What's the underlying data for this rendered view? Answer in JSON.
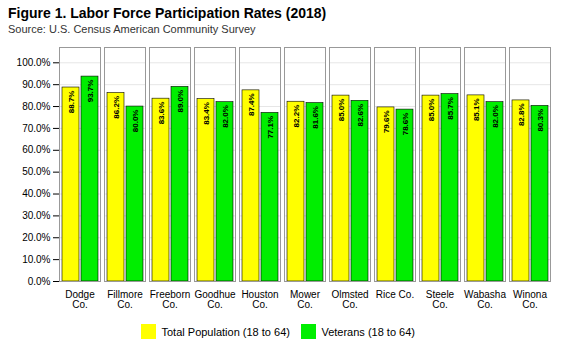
{
  "chart_data": {
    "type": "bar",
    "title": "Figure 1. Labor Force Participation Rates (2018)",
    "subtitle": "Source: U.S. Census American Community Survey",
    "categories": [
      "Dodge\nCo.",
      "Fillmore\nCo.",
      "Freeborn\nCo.",
      "Goodhue\nCo.",
      "Houston\nCo.",
      "Mower\nCo.",
      "Olmsted\nCo.",
      "Rice Co.",
      "Steele\nCo.",
      "Wabasha\nCo.",
      "Winona\nCo."
    ],
    "series": [
      {
        "name": "Total Population (18 to 64)",
        "color": "#FFFF00",
        "values": [
          88.7,
          86.2,
          83.6,
          83.4,
          87.4,
          82.2,
          85.0,
          79.6,
          85.0,
          85.1,
          82.8
        ],
        "value_labels": [
          "88.7%",
          "86.2%",
          "83.6%",
          "83.4%",
          "87.4%",
          "82.2%",
          "85.0%",
          "79.6%",
          "85.0%",
          "85.1%",
          "82.8%"
        ]
      },
      {
        "name": "Veterans (18 to 64)",
        "color": "#00EE00",
        "values": [
          93.7,
          80.0,
          89.0,
          82.0,
          77.1,
          81.6,
          82.6,
          78.6,
          85.7,
          82.0,
          80.3
        ],
        "value_labels": [
          "93.7%",
          "80.0%",
          "89.0%",
          "82.0%",
          "77.1%",
          "81.6%",
          "82.6%",
          "78.6%",
          "85.7%",
          "82.0%",
          "80.3%"
        ]
      }
    ],
    "ylim": [
      0,
      107
    ],
    "yticks": [
      {
        "value": 0,
        "label": "0.0%"
      },
      {
        "value": 10,
        "label": "10.0%"
      },
      {
        "value": 20,
        "label": "20.0%"
      },
      {
        "value": 30,
        "label": "30.0%"
      },
      {
        "value": 40,
        "label": "40.0%"
      },
      {
        "value": 50,
        "label": "50.0%"
      },
      {
        "value": 60,
        "label": "60.0%"
      },
      {
        "value": 70,
        "label": "70.0%"
      },
      {
        "value": 80,
        "label": "80.0%"
      },
      {
        "value": 90,
        "label": "90.0%"
      },
      {
        "value": 100,
        "label": "100.0%"
      }
    ],
    "grid": true,
    "legend": "bottom",
    "data_labels": true
  }
}
